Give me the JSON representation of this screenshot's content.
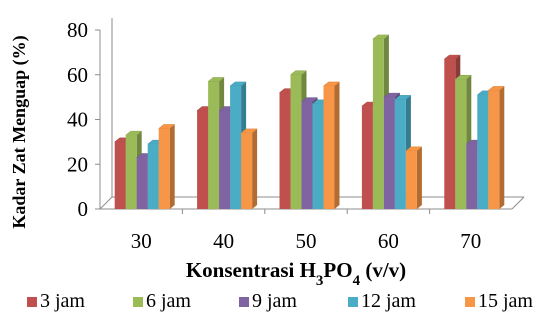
{
  "chart_data": {
    "type": "bar",
    "title": "",
    "xlabel": {
      "prefix": "Konsentrasi H",
      "sub1": "3",
      "mid": "PO",
      "sub2": "4",
      "suffix": " (v/v)"
    },
    "ylabel": "Kadar Zat Menguap (%)",
    "categories": [
      "30",
      "40",
      "50",
      "60",
      "70"
    ],
    "yticks": [
      "0",
      "20",
      "40",
      "60",
      "80"
    ],
    "ylim": [
      0,
      80
    ],
    "grid": false,
    "legend_position": "bottom",
    "series": [
      {
        "name": "3 jam",
        "color": "#c0504d",
        "values": [
          30,
          44,
          52,
          46,
          67
        ]
      },
      {
        "name": "6 jam",
        "color": "#9bbb59",
        "values": [
          33,
          57,
          60,
          76,
          58
        ]
      },
      {
        "name": "9 jam",
        "color": "#8064a2",
        "values": [
          23,
          44,
          48,
          50,
          29
        ]
      },
      {
        "name": "12 jam",
        "color": "#4bacc6",
        "values": [
          29,
          55,
          47,
          49,
          51
        ]
      },
      {
        "name": "15 jam",
        "color": "#f79646",
        "values": [
          36,
          34,
          55,
          26,
          53
        ]
      }
    ]
  }
}
